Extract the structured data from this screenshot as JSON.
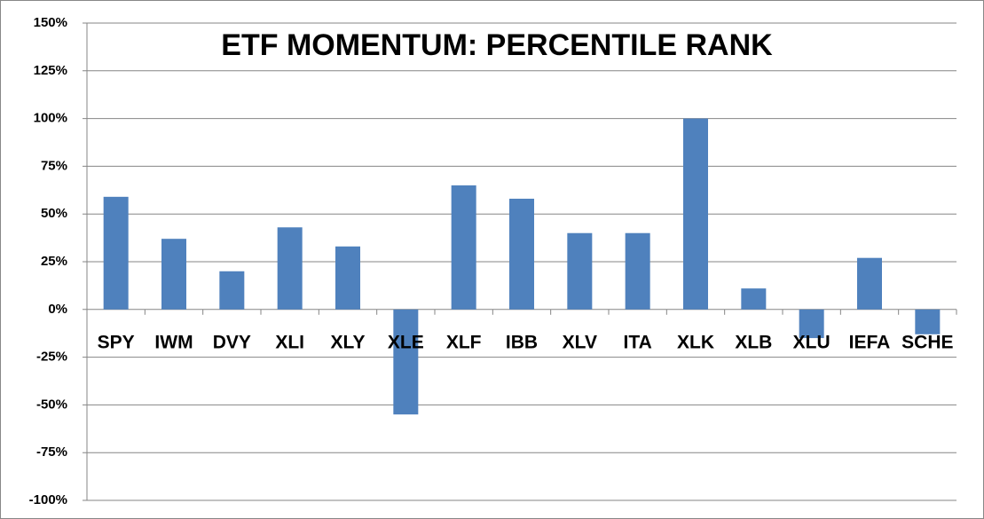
{
  "chart_data": {
    "type": "bar",
    "title": "ETF MOMENTUM: PERCENTILE RANK",
    "categories": [
      "SPY",
      "IWM",
      "DVY",
      "XLI",
      "XLY",
      "XLE",
      "XLF",
      "IBB",
      "XLV",
      "ITA",
      "XLK",
      "XLB",
      "XLU",
      "IEFA",
      "SCHE"
    ],
    "values": [
      59,
      37,
      20,
      43,
      33,
      -55,
      65,
      58,
      40,
      40,
      100,
      11,
      -15,
      27,
      -13
    ],
    "color": "#4f81bd",
    "ylim": [
      -100,
      150
    ],
    "yticks": [
      {
        "value": -100,
        "label": "-100%"
      },
      {
        "value": -75,
        "label": "-75%"
      },
      {
        "value": -50,
        "label": "-50%"
      },
      {
        "value": -25,
        "label": "-25%"
      },
      {
        "value": 0,
        "label": "0%"
      },
      {
        "value": 25,
        "label": "25%"
      },
      {
        "value": 50,
        "label": "50%"
      },
      {
        "value": 75,
        "label": "75%"
      },
      {
        "value": 100,
        "label": "100%"
      },
      {
        "value": 125,
        "label": "125%"
      },
      {
        "value": 150,
        "label": "150%"
      }
    ],
    "grid": true
  }
}
